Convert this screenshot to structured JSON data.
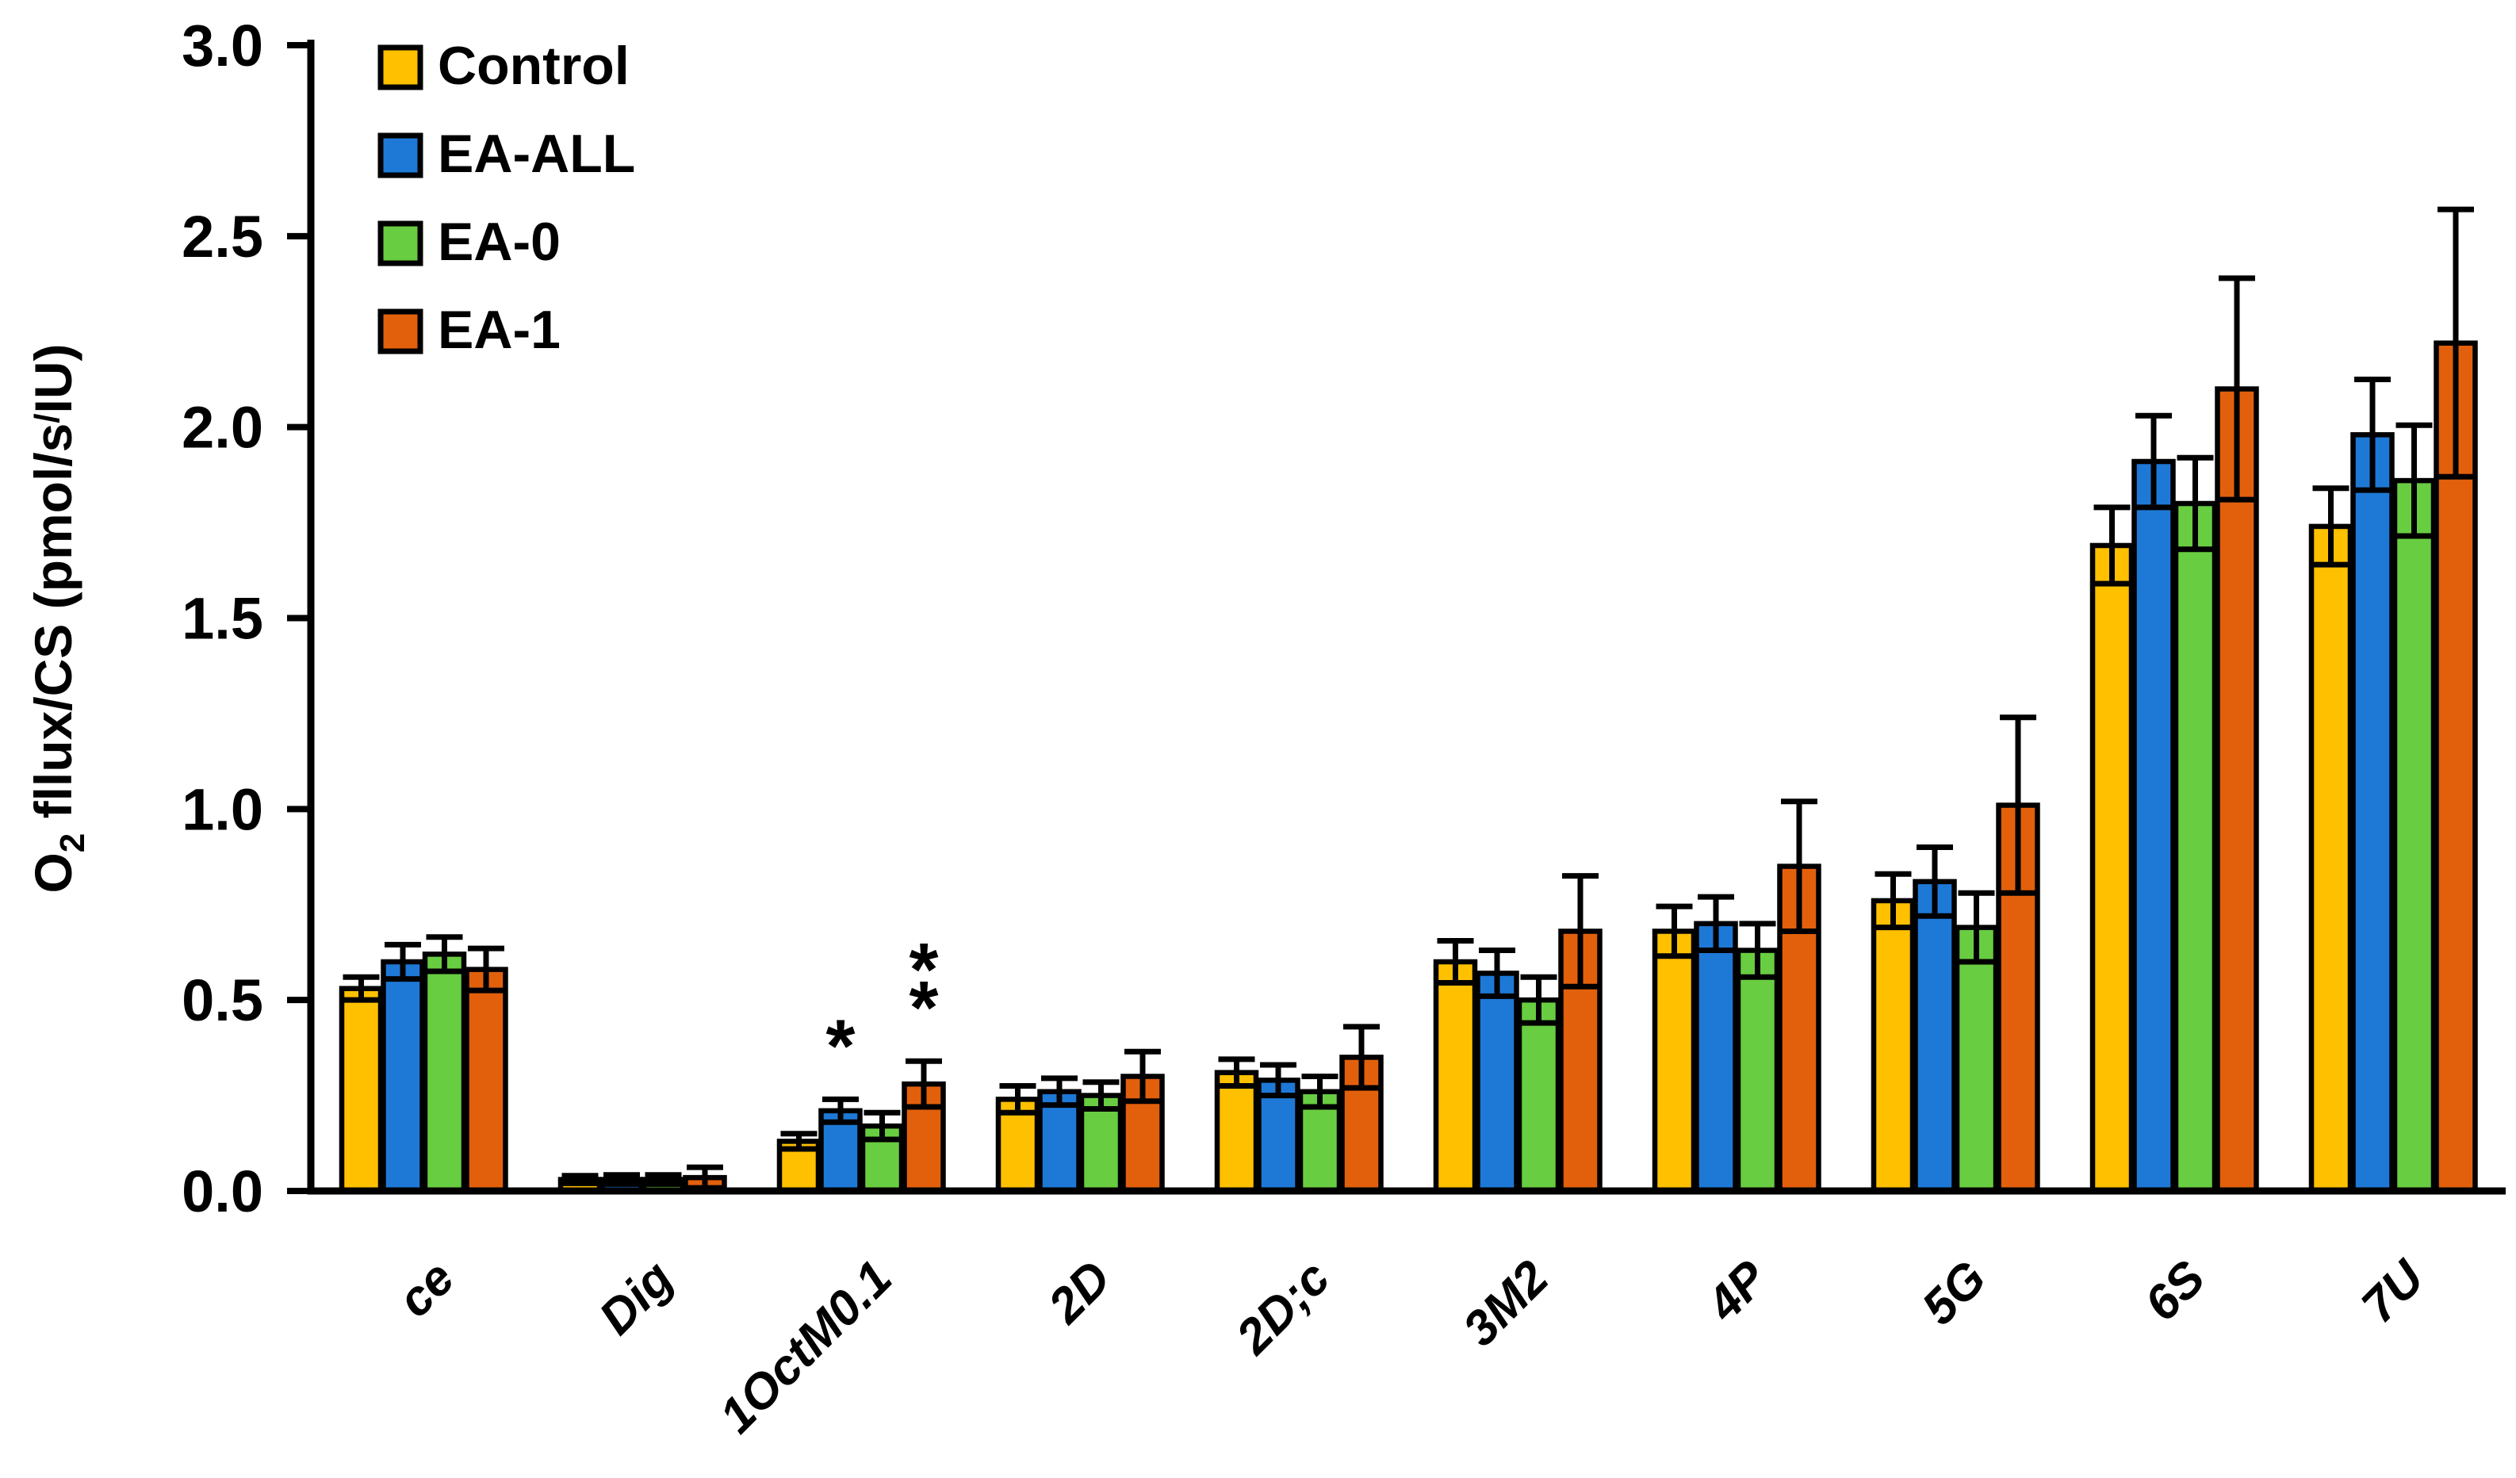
{
  "figure": {
    "background": "#FFFFFF",
    "axis_color": "#000000",
    "text_color": "#000000"
  },
  "chart_data": {
    "type": "bar",
    "title": "",
    "xlabel": "",
    "ylabel": "O2 fllux/CS (pmol/s/IU)",
    "ylabel_rich": {
      "prefix": "O",
      "subscript": "2",
      "middle": " fllux/CS (pmol/s",
      "superscript_slash": "/",
      "suffix": "IU)"
    },
    "ylim": [
      0,
      3.0
    ],
    "yticks": [
      0.0,
      0.5,
      1.0,
      1.5,
      2.0,
      2.5,
      3.0
    ],
    "ytick_labels": [
      "0.0",
      "0.5",
      "1.0",
      "1.5",
      "2.0",
      "2.5",
      "3.0"
    ],
    "grid": false,
    "legend_position": "top-left-inside",
    "error_bars": "symmetric-with-caps",
    "categories": [
      "ce",
      "Dig",
      "1OctM0.1",
      "2D",
      "2D;c",
      "3M2",
      "4P",
      "5G",
      "6S",
      "7U"
    ],
    "series": [
      {
        "name": "Control",
        "color": "#FFC000",
        "values": [
          0.53,
          0.03,
          0.13,
          0.24,
          0.31,
          0.6,
          0.68,
          0.76,
          1.69,
          1.74
        ],
        "errors": [
          0.03,
          0.01,
          0.02,
          0.035,
          0.035,
          0.055,
          0.065,
          0.07,
          0.1,
          0.1
        ]
      },
      {
        "name": "EA-ALL",
        "color": "#1E79D6",
        "values": [
          0.6,
          0.03,
          0.21,
          0.26,
          0.29,
          0.57,
          0.7,
          0.81,
          1.91,
          1.98
        ],
        "errors": [
          0.045,
          0.012,
          0.03,
          0.035,
          0.04,
          0.06,
          0.07,
          0.09,
          0.12,
          0.145
        ]
      },
      {
        "name": "EA-0",
        "color": "#68CD41",
        "values": [
          0.62,
          0.03,
          0.17,
          0.25,
          0.26,
          0.5,
          0.63,
          0.69,
          1.8,
          1.86
        ],
        "errors": [
          0.045,
          0.012,
          0.035,
          0.035,
          0.04,
          0.06,
          0.07,
          0.09,
          0.12,
          0.145
        ]
      },
      {
        "name": "EA-1",
        "color": "#E2600C",
        "values": [
          0.58,
          0.035,
          0.28,
          0.3,
          0.35,
          0.68,
          0.85,
          1.01,
          2.1,
          2.22
        ],
        "errors": [
          0.055,
          0.027,
          0.06,
          0.065,
          0.08,
          0.145,
          0.17,
          0.23,
          0.29,
          0.35
        ]
      }
    ],
    "annotations": [
      {
        "category": "1OctM0.1",
        "series": "EA-ALL",
        "symbols": [
          "*"
        ]
      },
      {
        "category": "1OctM0.1",
        "series": "EA-1",
        "symbols": [
          "*",
          "*"
        ]
      }
    ]
  }
}
